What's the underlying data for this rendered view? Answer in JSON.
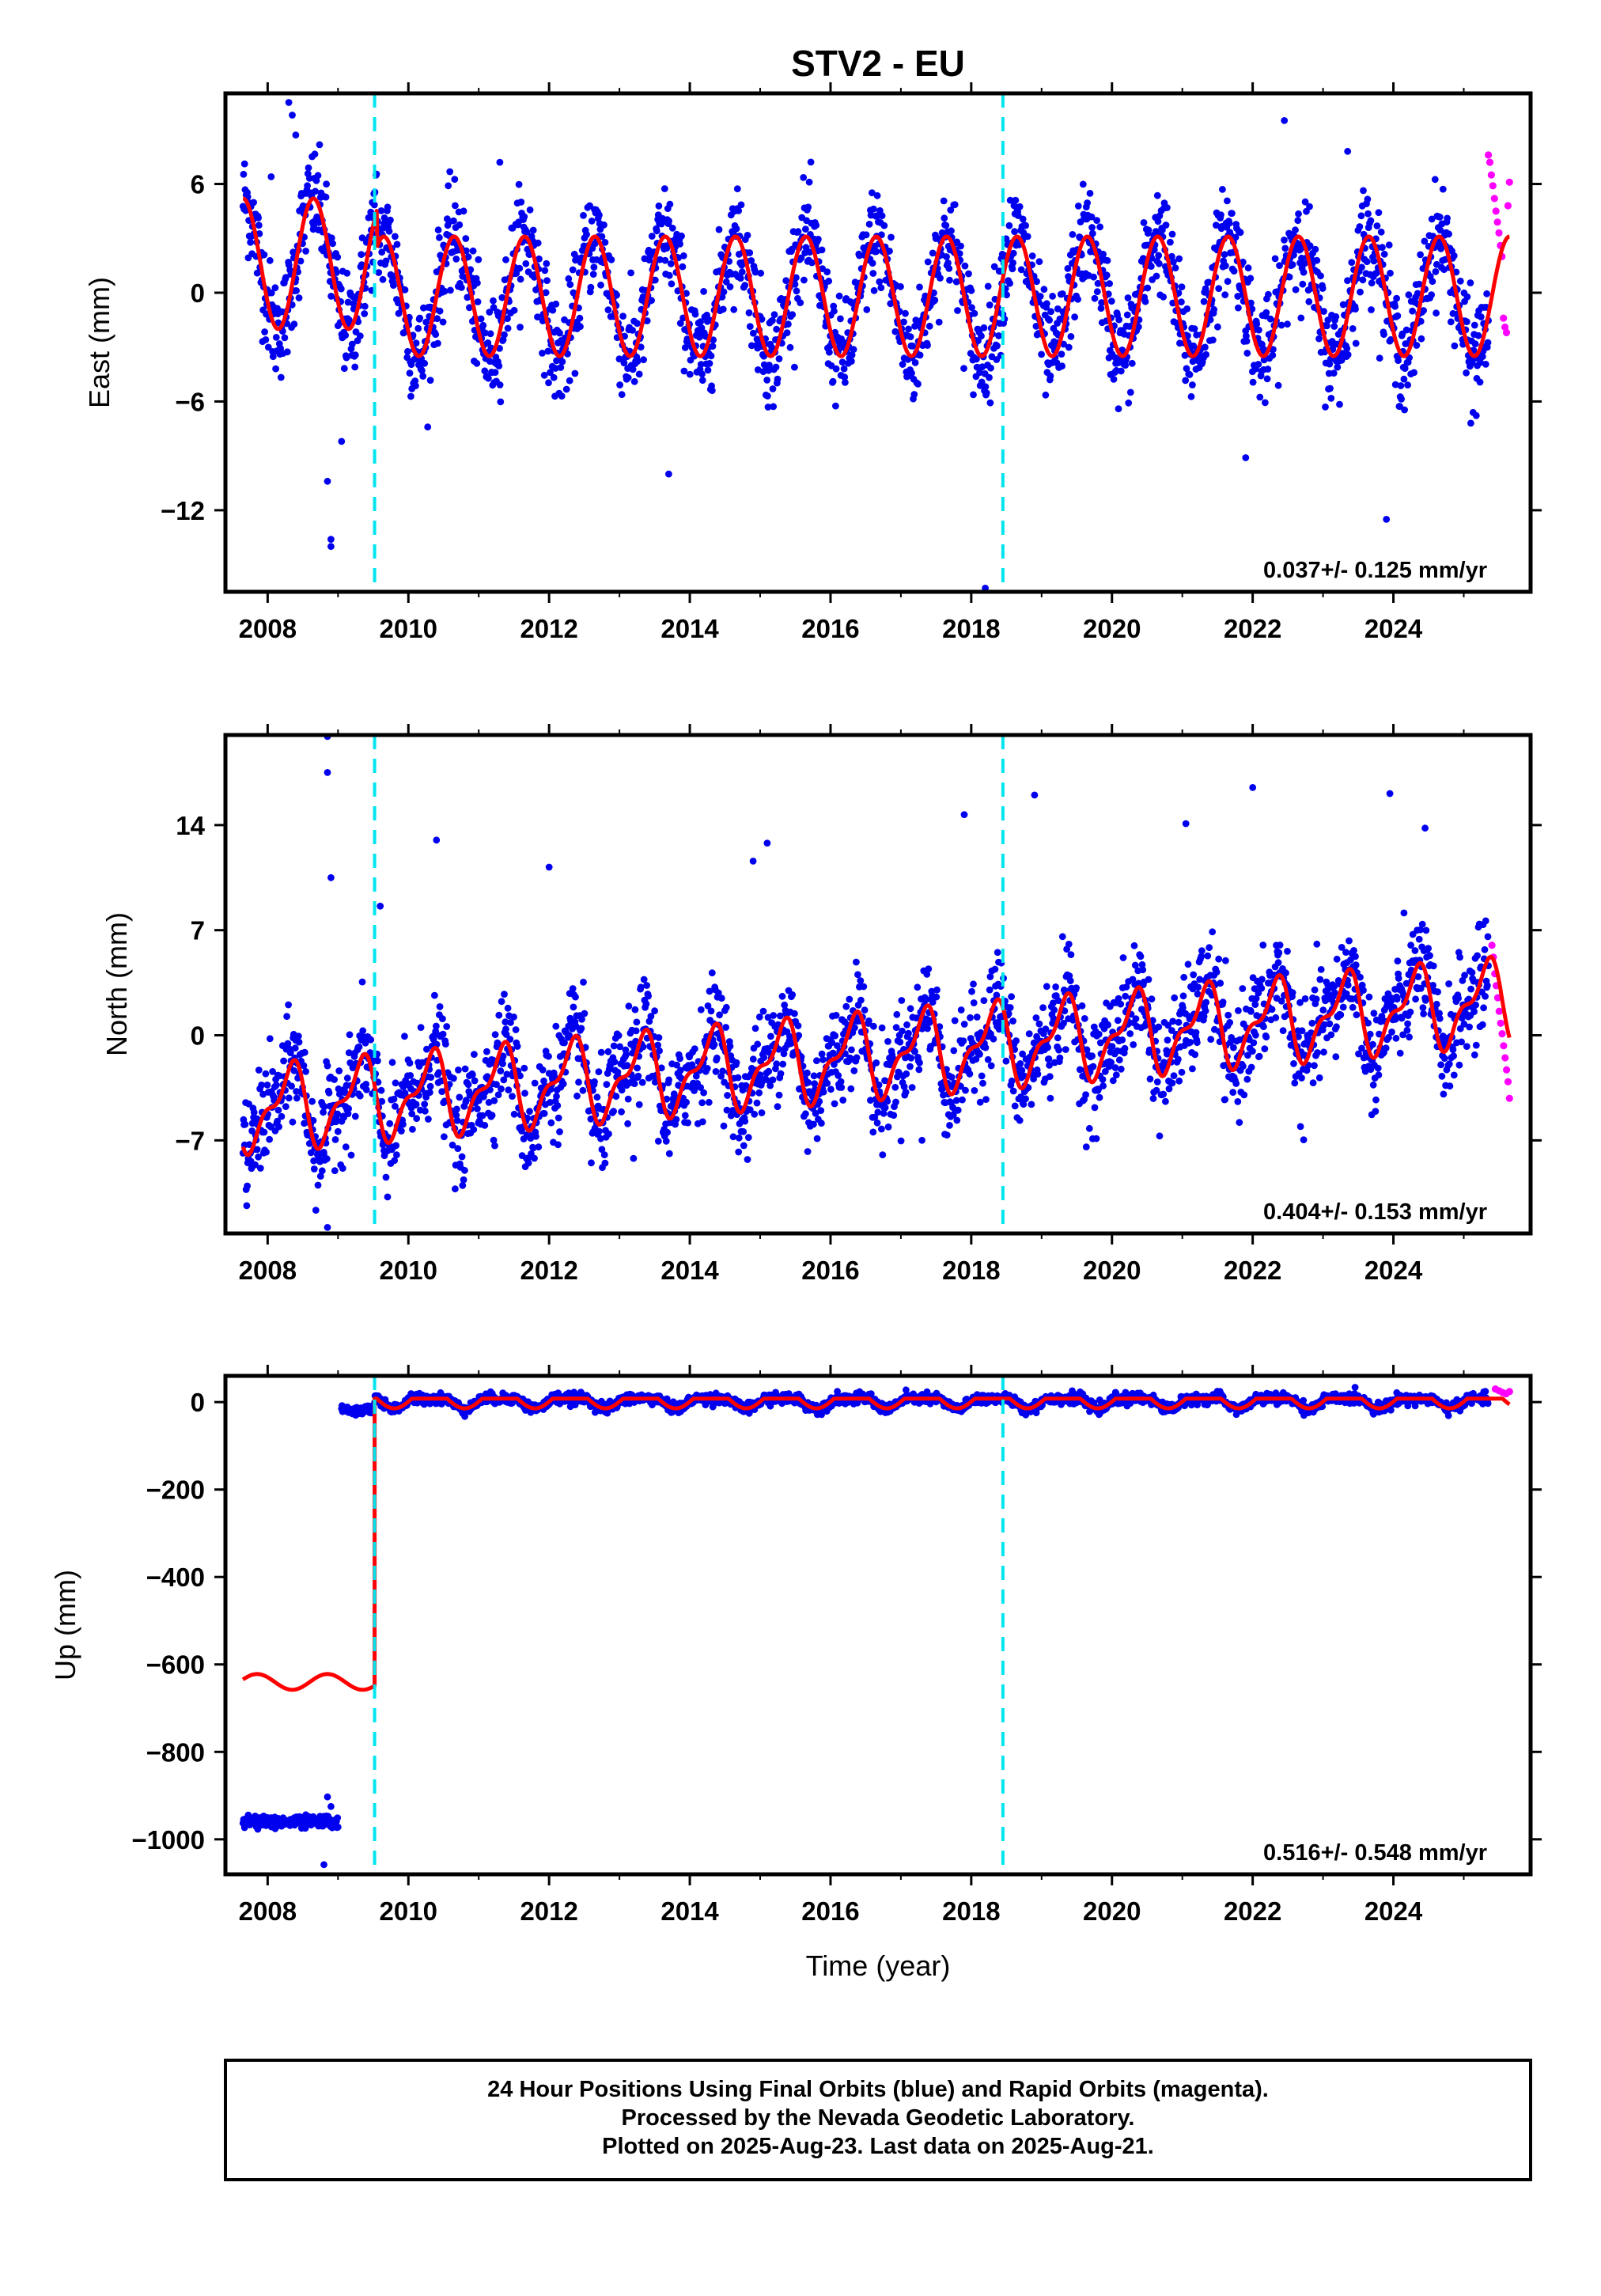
{
  "title": "STV2 - EU",
  "chart_data": [
    {
      "type": "scatter",
      "panel": "east",
      "ylabel": "East (mm)",
      "xlabel": "",
      "xlim": [
        2007.4,
        2025.95
      ],
      "ylim": [
        -16.5,
        11.0
      ],
      "xticks": [
        2008,
        2010,
        2012,
        2014,
        2016,
        2018,
        2020,
        2022,
        2024
      ],
      "yticks": [
        6,
        0,
        -6,
        -12
      ],
      "ytick_labels": [
        "6",
        "0",
        "−6",
        "−12"
      ],
      "rate": "0.037+/- 0.125 mm/yr",
      "offset_lines": [
        2009.52,
        2018.45
      ],
      "fit": {
        "amp": 3.3,
        "period": 1.0,
        "phase": 0.4,
        "offset": -0.2,
        "early_amp": 3.6,
        "early_end": 2009.55
      },
      "scatter_spread": 1.4,
      "outliers": [
        {
          "x": 2008.05,
          "y": 6.4
        },
        {
          "x": 2008.3,
          "y": 10.5
        },
        {
          "x": 2008.35,
          "y": 9.8
        },
        {
          "x": 2008.4,
          "y": 8.7
        },
        {
          "x": 2008.9,
          "y": -14.0
        },
        {
          "x": 2008.9,
          "y": -13.6
        },
        {
          "x": 2008.85,
          "y": -10.4
        },
        {
          "x": 2009.05,
          "y": -8.2
        },
        {
          "x": 2011.3,
          "y": 7.2
        },
        {
          "x": 2013.7,
          "y": -10.0
        },
        {
          "x": 2018.2,
          "y": -16.3
        },
        {
          "x": 2022.45,
          "y": 9.5
        },
        {
          "x": 2021.9,
          "y": -9.1
        },
        {
          "x": 2023.35,
          "y": 7.8
        },
        {
          "x": 2023.9,
          "y": -12.5
        },
        {
          "x": 2025.1,
          "y": -7.2
        }
      ],
      "rapid": {
        "x_start": 2025.35,
        "x_end": 2025.65,
        "values": [
          7.6,
          7.2,
          6.5,
          5.9,
          5.2,
          4.5,
          3.9,
          3.3,
          2.6,
          2.0,
          -1.4,
          -1.9,
          -2.2,
          4.8,
          6.1
        ]
      }
    },
    {
      "type": "scatter",
      "panel": "north",
      "ylabel": "North (mm)",
      "xlabel": "",
      "xlim": [
        2007.4,
        2025.95
      ],
      "ylim": [
        -13.2,
        20.0
      ],
      "xticks": [
        2008,
        2010,
        2012,
        2014,
        2016,
        2018,
        2020,
        2022,
        2024
      ],
      "yticks": [
        14,
        7,
        0,
        -7
      ],
      "ytick_labels": [
        "14",
        "7",
        "0",
        "−7"
      ],
      "rate": "0.404+/- 0.153 mm/yr",
      "offset_lines": [
        2009.52,
        2018.45
      ],
      "fit": {
        "amp": 2.4,
        "period": 1.0,
        "phase": 0.05,
        "offset": -1.6,
        "trend_per_year": 0.404,
        "semi_amp": 1.1
      },
      "scatter_spread": 1.7,
      "outliers": [
        {
          "x": 2008.85,
          "y": 19.9
        },
        {
          "x": 2008.85,
          "y": 17.5
        },
        {
          "x": 2008.9,
          "y": 10.5
        },
        {
          "x": 2008.85,
          "y": -12.8
        },
        {
          "x": 2008.8,
          "y": -7.9
        },
        {
          "x": 2009.6,
          "y": 8.6
        },
        {
          "x": 2010.4,
          "y": 13.0
        },
        {
          "x": 2012.0,
          "y": 11.2
        },
        {
          "x": 2015.1,
          "y": 12.8
        },
        {
          "x": 2014.9,
          "y": 11.6
        },
        {
          "x": 2017.9,
          "y": 14.7
        },
        {
          "x": 2018.9,
          "y": 16.0
        },
        {
          "x": 2021.05,
          "y": 14.1
        },
        {
          "x": 2022.0,
          "y": 16.5
        },
        {
          "x": 2023.95,
          "y": 16.1
        },
        {
          "x": 2024.45,
          "y": 13.8
        },
        {
          "x": 2012.6,
          "y": -8.5
        },
        {
          "x": 2013.2,
          "y": -8.2
        },
        {
          "x": 2017.3,
          "y": -7.0
        }
      ],
      "rapid": {
        "x_start": 2025.4,
        "x_end": 2025.65,
        "values": [
          6.0,
          5.2,
          4.1,
          3.3,
          2.5,
          1.6,
          0.8,
          0.1,
          -0.7,
          -1.5,
          -2.3,
          -3.1,
          -4.2
        ]
      }
    },
    {
      "type": "scatter",
      "panel": "up",
      "ylabel": "Up (mm)",
      "xlabel": "Time (year)",
      "xlim": [
        2007.4,
        2025.95
      ],
      "ylim": [
        -1080.0,
        60.0
      ],
      "xticks": [
        2008,
        2010,
        2012,
        2014,
        2016,
        2018,
        2020,
        2022,
        2024
      ],
      "yticks": [
        0,
        -200,
        -400,
        -600,
        -800,
        -1000
      ],
      "ytick_labels": [
        "0",
        "−200",
        "−400",
        "−600",
        "−800",
        "−1000"
      ],
      "rate": "0.516+/- 0.548 mm/yr",
      "offset_lines": [
        2009.52,
        2018.45
      ],
      "pre_step": {
        "x_start": 2007.65,
        "x_end": 2009.0,
        "mean": -960.0,
        "fit_level": -640.0
      },
      "post_step_gap_cluster": {
        "x_start": 2009.05,
        "x_end": 2009.5,
        "mean": -18.0
      },
      "fit": {
        "amp": 14.0,
        "period": 1.0,
        "phase": 0.55,
        "offset": 2.0,
        "step_year": 2009.52
      },
      "scatter_spread": 6.0,
      "outliers": [
        {
          "x": 2008.8,
          "y": -1058.0
        },
        {
          "x": 2008.85,
          "y": -903.0
        },
        {
          "x": 2008.9,
          "y": -925.0
        }
      ],
      "rapid": {
        "x_start": 2025.45,
        "x_end": 2025.65,
        "values": [
          30.0,
          26.0,
          22.0,
          19.0,
          24.0
        ]
      }
    }
  ],
  "footer": {
    "line1": "24 Hour Positions Using Final Orbits (blue) and Rapid Orbits (magenta).",
    "line2": "Processed by the Nevada Geodetic Laboratory.",
    "line3": "Plotted on 2025-Aug-23. Last data on 2025-Aug-21."
  },
  "colors": {
    "final_orbits": "#0000ee",
    "rapid_orbits": "#ff00ff",
    "fit": "#ff0000",
    "offset_line": "#00e5ee",
    "frame": "#000000"
  }
}
